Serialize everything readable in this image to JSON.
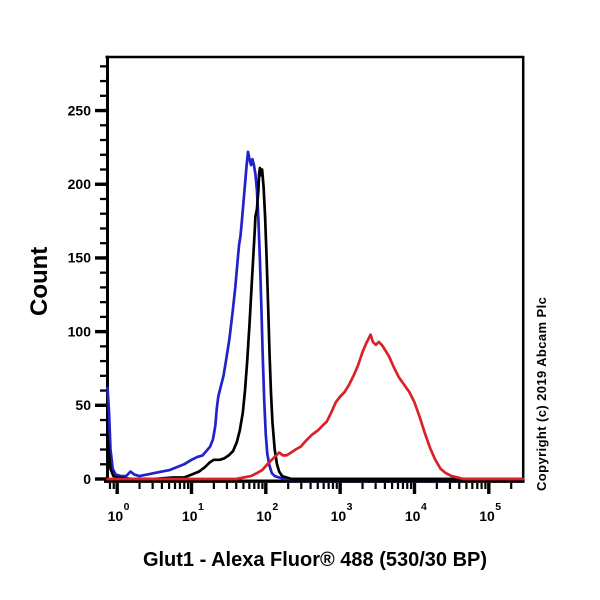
{
  "figure": {
    "title": "Glut1 - Alexa Fluor® 488 (530/30 BP)",
    "copyright": "Copyright (c) 2019 Abcam Plc"
  },
  "chart_data": {
    "type": "line",
    "subtype": "flow-cytometry-overlay-histogram",
    "title": "Glut1 - Alexa Fluor® 488 (530/30 BP)",
    "xlabel": "Glut1 - Alexa Fluor® 488 (530/30 BP)",
    "ylabel": "Count",
    "xscale": "log10",
    "xlim_log10": [
      -0.13,
      5.46
    ],
    "ylim": [
      0,
      286
    ],
    "grid": false,
    "legend": "none",
    "axis_color": "#000000",
    "background_color": "#ffffff",
    "x_ticks": [
      {
        "base": "10",
        "exp": "0",
        "log10": 0
      },
      {
        "base": "10",
        "exp": "1",
        "log10": 1
      },
      {
        "base": "10",
        "exp": "2",
        "log10": 2
      },
      {
        "base": "10",
        "exp": "3",
        "log10": 3
      },
      {
        "base": "10",
        "exp": "4",
        "log10": 4
      },
      {
        "base": "10",
        "exp": "5",
        "log10": 5
      }
    ],
    "y_ticks": [
      0,
      50,
      100,
      150,
      200,
      250
    ],
    "y_minor_step": 10,
    "series": [
      {
        "name": "blue",
        "color": "#2222cb",
        "points": [
          [
            -0.13,
            62
          ],
          [
            -0.11,
            46
          ],
          [
            -0.09,
            20
          ],
          [
            -0.06,
            7
          ],
          [
            -0.02,
            3
          ],
          [
            0.05,
            2
          ],
          [
            0.12,
            2
          ],
          [
            0.18,
            5
          ],
          [
            0.23,
            3
          ],
          [
            0.3,
            2
          ],
          [
            0.4,
            3
          ],
          [
            0.5,
            4
          ],
          [
            0.6,
            5
          ],
          [
            0.7,
            6
          ],
          [
            0.8,
            8
          ],
          [
            0.9,
            10
          ],
          [
            1.0,
            13
          ],
          [
            1.08,
            15
          ],
          [
            1.15,
            16
          ],
          [
            1.2,
            19
          ],
          [
            1.25,
            22
          ],
          [
            1.29,
            27
          ],
          [
            1.32,
            36
          ],
          [
            1.34,
            48
          ],
          [
            1.36,
            56
          ],
          [
            1.39,
            62
          ],
          [
            1.43,
            70
          ],
          [
            1.47,
            82
          ],
          [
            1.51,
            95
          ],
          [
            1.55,
            112
          ],
          [
            1.59,
            130
          ],
          [
            1.62,
            148
          ],
          [
            1.64,
            159
          ],
          [
            1.66,
            165
          ],
          [
            1.68,
            176
          ],
          [
            1.7,
            188
          ],
          [
            1.72,
            200
          ],
          [
            1.74,
            212
          ],
          [
            1.76,
            222
          ],
          [
            1.78,
            217
          ],
          [
            1.8,
            213
          ],
          [
            1.82,
            217
          ],
          [
            1.84,
            213
          ],
          [
            1.86,
            207
          ],
          [
            1.88,
            196
          ],
          [
            1.9,
            176
          ],
          [
            1.92,
            149
          ],
          [
            1.94,
            116
          ],
          [
            1.96,
            82
          ],
          [
            1.98,
            52
          ],
          [
            2.0,
            30
          ],
          [
            2.02,
            17
          ],
          [
            2.05,
            9
          ],
          [
            2.08,
            4
          ],
          [
            2.12,
            2
          ],
          [
            2.18,
            1
          ],
          [
            2.26,
            0
          ],
          [
            5.46,
            0
          ]
        ]
      },
      {
        "name": "black",
        "color": "#000000",
        "points": [
          [
            -0.13,
            28
          ],
          [
            -0.11,
            17
          ],
          [
            -0.09,
            7
          ],
          [
            -0.05,
            2
          ],
          [
            0.0,
            1
          ],
          [
            0.2,
            0
          ],
          [
            0.5,
            0
          ],
          [
            0.75,
            1
          ],
          [
            0.9,
            1
          ],
          [
            1.0,
            3
          ],
          [
            1.1,
            5
          ],
          [
            1.18,
            8
          ],
          [
            1.24,
            11
          ],
          [
            1.3,
            13
          ],
          [
            1.38,
            13
          ],
          [
            1.44,
            14
          ],
          [
            1.5,
            16
          ],
          [
            1.56,
            19
          ],
          [
            1.61,
            25
          ],
          [
            1.65,
            33
          ],
          [
            1.69,
            45
          ],
          [
            1.72,
            60
          ],
          [
            1.75,
            80
          ],
          [
            1.78,
            105
          ],
          [
            1.81,
            132
          ],
          [
            1.83,
            150
          ],
          [
            1.85,
            168
          ],
          [
            1.86,
            178
          ],
          [
            1.88,
            183
          ],
          [
            1.9,
            196
          ],
          [
            1.91,
            207
          ],
          [
            1.92,
            211
          ],
          [
            1.93,
            206
          ],
          [
            1.95,
            210
          ],
          [
            1.97,
            198
          ],
          [
            1.99,
            178
          ],
          [
            2.01,
            150
          ],
          [
            2.03,
            118
          ],
          [
            2.05,
            86
          ],
          [
            2.07,
            58
          ],
          [
            2.09,
            38
          ],
          [
            2.12,
            20
          ],
          [
            2.15,
            10
          ],
          [
            2.18,
            5
          ],
          [
            2.22,
            2
          ],
          [
            2.28,
            1
          ],
          [
            2.35,
            0
          ],
          [
            5.46,
            0
          ]
        ]
      },
      {
        "name": "red",
        "color": "#d8222a",
        "points": [
          [
            -0.13,
            0
          ],
          [
            1.6,
            0
          ],
          [
            1.7,
            1
          ],
          [
            1.8,
            2
          ],
          [
            1.88,
            4
          ],
          [
            1.95,
            6
          ],
          [
            2.02,
            10
          ],
          [
            2.08,
            13
          ],
          [
            2.14,
            16
          ],
          [
            2.18,
            18
          ],
          [
            2.23,
            16
          ],
          [
            2.28,
            16
          ],
          [
            2.34,
            18
          ],
          [
            2.4,
            20
          ],
          [
            2.47,
            22
          ],
          [
            2.54,
            26
          ],
          [
            2.62,
            30
          ],
          [
            2.7,
            33
          ],
          [
            2.76,
            36
          ],
          [
            2.82,
            39
          ],
          [
            2.88,
            45
          ],
          [
            2.94,
            52
          ],
          [
            3.0,
            56
          ],
          [
            3.06,
            59
          ],
          [
            3.12,
            64
          ],
          [
            3.18,
            70
          ],
          [
            3.24,
            77
          ],
          [
            3.3,
            86
          ],
          [
            3.35,
            92
          ],
          [
            3.38,
            95
          ],
          [
            3.41,
            98
          ],
          [
            3.44,
            93
          ],
          [
            3.48,
            91
          ],
          [
            3.52,
            93
          ],
          [
            3.56,
            91
          ],
          [
            3.6,
            88
          ],
          [
            3.66,
            83
          ],
          [
            3.72,
            76
          ],
          [
            3.79,
            69
          ],
          [
            3.86,
            64
          ],
          [
            3.93,
            59
          ],
          [
            4.0,
            52
          ],
          [
            4.07,
            42
          ],
          [
            4.14,
            31
          ],
          [
            4.21,
            21
          ],
          [
            4.28,
            13
          ],
          [
            4.35,
            7
          ],
          [
            4.42,
            4
          ],
          [
            4.5,
            2
          ],
          [
            4.58,
            1
          ],
          [
            4.66,
            0
          ],
          [
            5.46,
            0
          ]
        ]
      }
    ]
  }
}
